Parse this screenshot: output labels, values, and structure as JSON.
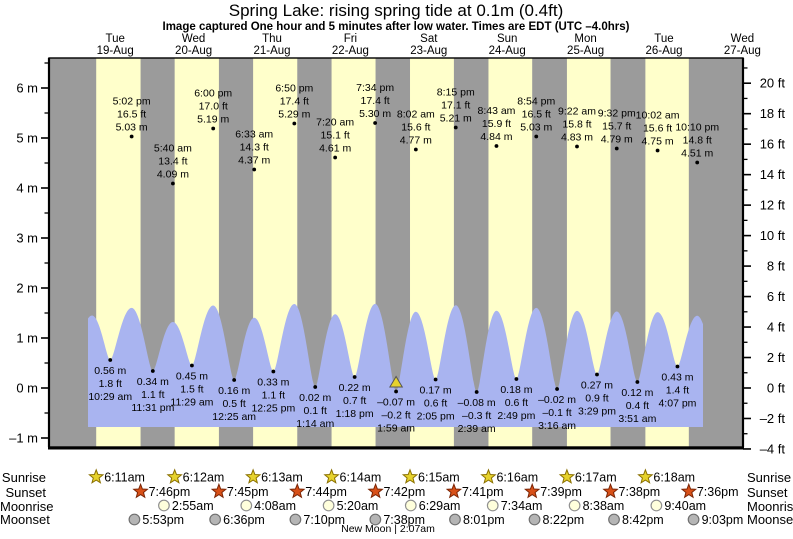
{
  "title": "Spring Lake: rising  spring tide at 0.1m (0.4ft)",
  "subtitle": "Image captured One hour and 5 minutes after low water. Times are EDT (UTC –4.0hrs)",
  "rows": {
    "sunrise": "Sunrise",
    "sunset": "Sunset",
    "moonrise": "Moonrise",
    "moonset": "Moonset"
  },
  "chart_data": {
    "type": "area",
    "title": "Spring Lake: rising  spring tide at 0.1m (0.4ft)",
    "y_axis_left": {
      "unit": "m",
      "min": -1,
      "max": 6,
      "major_step": 1,
      "labels": [
        "6 m",
        "5 m",
        "4 m",
        "3 m",
        "2 m",
        "1 m",
        "0 m",
        "–1 m"
      ]
    },
    "y_axis_right": {
      "unit": "ft",
      "min": -4,
      "max": 20,
      "major_step": 2,
      "labels": [
        "20 ft",
        "18 ft",
        "16 ft",
        "14 ft",
        "12 ft",
        "10 ft",
        "8 ft",
        "6 ft",
        "4 ft",
        "2 ft",
        "0 ft",
        "–2 ft",
        "–4 ft"
      ]
    },
    "days": [
      {
        "name": "Tue",
        "date": "19-Aug",
        "sunrise": "6:11am",
        "sunset": "7:46pm",
        "moonrise": "",
        "moonset": "5:53pm"
      },
      {
        "name": "Wed",
        "date": "20-Aug",
        "sunrise": "6:12am",
        "sunset": "7:45pm",
        "moonrise": "2:55am",
        "moonset": "6:36pm"
      },
      {
        "name": "Thu",
        "date": "21-Aug",
        "sunrise": "6:13am",
        "sunset": "7:44pm",
        "moonrise": "4:08am",
        "moonset": "7:10pm"
      },
      {
        "name": "Fri",
        "date": "22-Aug",
        "sunrise": "6:14am",
        "sunset": "7:42pm",
        "moonrise": "5:20am",
        "moonset": "7:38pm"
      },
      {
        "name": "Sat",
        "date": "23-Aug",
        "sunrise": "6:15am",
        "sunset": "7:41pm",
        "moonrise": "6:29am",
        "moonset": "8:01pm"
      },
      {
        "name": "Sun",
        "date": "24-Aug",
        "sunrise": "6:16am",
        "sunset": "7:39pm",
        "moonrise": "7:34am",
        "moonset": "8:22pm"
      },
      {
        "name": "Mon",
        "date": "25-Aug",
        "sunrise": "6:17am",
        "sunset": "7:38pm",
        "moonrise": "8:38am",
        "moonset": "8:42pm"
      },
      {
        "name": "Tue",
        "date": "26-Aug",
        "sunrise": "6:18am",
        "sunset": "7:36pm",
        "moonrise": "9:40am",
        "moonset": "9:03pm"
      },
      {
        "name": "Wed",
        "date": "27-Aug",
        "sunrise": "",
        "sunset": "",
        "moonrise": "",
        "moonset": ""
      }
    ],
    "high_tides": [
      {
        "day": 0,
        "time": "5:02 pm",
        "ft": "16.5 ft",
        "m": "5.03 m",
        "value_m": 5.03
      },
      {
        "day": 1,
        "time": "5:40 am",
        "ft": "13.4 ft",
        "m": "4.09 m",
        "value_m": 4.09
      },
      {
        "day": 1,
        "time": "6:00 pm",
        "ft": "17.0 ft",
        "m": "5.19 m",
        "value_m": 5.19
      },
      {
        "day": 2,
        "time": "6:33 am",
        "ft": "14.3 ft",
        "m": "4.37 m",
        "value_m": 4.37
      },
      {
        "day": 2,
        "time": "6:50 pm",
        "ft": "17.4 ft",
        "m": "5.29 m",
        "value_m": 5.29
      },
      {
        "day": 3,
        "time": "7:20 am",
        "ft": "15.1 ft",
        "m": "4.61 m",
        "value_m": 4.61
      },
      {
        "day": 3,
        "time": "7:34 pm",
        "ft": "17.4 ft",
        "m": "5.30 m",
        "value_m": 5.3
      },
      {
        "day": 4,
        "time": "8:02 am",
        "ft": "15.6 ft",
        "m": "4.77 m",
        "value_m": 4.77
      },
      {
        "day": 4,
        "time": "8:15 pm",
        "ft": "17.1 ft",
        "m": "5.21 m",
        "value_m": 5.21
      },
      {
        "day": 5,
        "time": "8:43 am",
        "ft": "15.9 ft",
        "m": "4.84 m",
        "value_m": 4.84
      },
      {
        "day": 5,
        "time": "8:54 pm",
        "ft": "16.5 ft",
        "m": "5.03 m",
        "value_m": 5.03
      },
      {
        "day": 6,
        "time": "9:22 am",
        "ft": "15.8 ft",
        "m": "4.83 m",
        "value_m": 4.83
      },
      {
        "day": 6,
        "time": "9:32 pm",
        "ft": "15.7 ft",
        "m": "4.79 m",
        "value_m": 4.79
      },
      {
        "day": 7,
        "time": "10:02 am",
        "ft": "15.6 ft",
        "m": "4.75 m",
        "value_m": 4.75
      },
      {
        "day": 7,
        "time": "10:10 pm",
        "ft": "14.8 ft",
        "m": "4.51 m",
        "value_m": 4.51
      }
    ],
    "low_tides": [
      {
        "day": 0,
        "time": "10:29 am",
        "ft": "1.8 ft",
        "m": "0.56 m",
        "value_m": 0.56
      },
      {
        "day": 0,
        "time": "11:31 pm",
        "ft": "1.1 ft",
        "m": "0.34 m",
        "value_m": 0.34
      },
      {
        "day": 1,
        "time": "11:29 am",
        "ft": "1.5 ft",
        "m": "0.45 m",
        "value_m": 0.45
      },
      {
        "day": 2,
        "time": "12:25 am",
        "ft": "0.5 ft",
        "m": "0.16 m",
        "value_m": 0.16
      },
      {
        "day": 2,
        "time": "12:25 pm",
        "ft": "1.1 ft",
        "m": "0.33 m",
        "value_m": 0.33
      },
      {
        "day": 3,
        "time": "1:14 am",
        "ft": "0.1 ft",
        "m": "0.02 m",
        "value_m": 0.02
      },
      {
        "day": 3,
        "time": "1:18 pm",
        "ft": "0.7 ft",
        "m": "0.22 m",
        "value_m": 0.22
      },
      {
        "day": 4,
        "time": "1:59 am",
        "ft": "–0.2 ft",
        "m": "–0.07 m",
        "value_m": -0.07,
        "marker": true
      },
      {
        "day": 4,
        "time": "2:05 pm",
        "ft": "0.6 ft",
        "m": "0.17 m",
        "value_m": 0.17
      },
      {
        "day": 5,
        "time": "2:39 am",
        "ft": "–0.3 ft",
        "m": "–0.08 m",
        "value_m": -0.08
      },
      {
        "day": 5,
        "time": "2:49 pm",
        "ft": "0.6 ft",
        "m": "0.18 m",
        "value_m": 0.18
      },
      {
        "day": 6,
        "time": "3:16 am",
        "ft": "–0.1 ft",
        "m": "–0.02 m",
        "value_m": -0.02
      },
      {
        "day": 6,
        "time": "3:29 pm",
        "ft": "0.9 ft",
        "m": "0.27 m",
        "value_m": 0.27
      },
      {
        "day": 7,
        "time": "3:51 am",
        "ft": "0.4 ft",
        "m": "0.12 m",
        "value_m": 0.12
      },
      {
        "day": 7,
        "time": "4:07 pm",
        "ft": "1.4 ft",
        "m": "0.43 m",
        "value_m": 0.43
      }
    ],
    "new_moon": {
      "label": "New Moon | 2:07am",
      "day": 4,
      "time": "2:07am"
    },
    "colors": {
      "night_band": "#9b9b9b",
      "day_band": "#ffffcb",
      "water": "#a9b4f0",
      "date_text": "#ff0000",
      "sunrise_star": "#e6d22d",
      "sunset_star": "#d85018",
      "moonrise_circle": "#ffffdc",
      "moonset_circle": "#b5b5b5",
      "marker_triangle": "#e6d22d"
    },
    "legend_position": "none",
    "grid": false
  }
}
